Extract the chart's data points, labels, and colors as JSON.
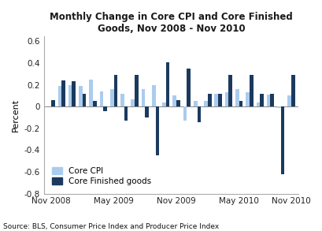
{
  "title": "Monthly Change in Core CPI and Core Finished\nGoods, Nov 2008 - Nov 2010",
  "ylabel": "Percent",
  "source": "Source: BLS, Consumer Price Index and Producer Price Index",
  "ylim": [
    -0.8,
    0.65
  ],
  "yticks": [
    -0.8,
    -0.6,
    -0.4,
    -0.2,
    0.0,
    0.2,
    0.4,
    0.6
  ],
  "xtick_labels": [
    "Nov 2008",
    "May 2009",
    "Nov 2009",
    "May 2010",
    "Nov 2010"
  ],
  "core_cpi": [
    0.0,
    0.19,
    0.2,
    0.19,
    0.25,
    0.14,
    0.16,
    0.12,
    0.07,
    0.16,
    0.2,
    0.04,
    0.1,
    -0.13,
    0.05,
    0.05,
    0.12,
    0.13,
    0.16,
    0.13,
    0.04,
    0.11,
    -0.01,
    0.1
  ],
  "core_finished": [
    0.06,
    0.24,
    0.23,
    0.12,
    0.05,
    -0.04,
    0.29,
    -0.13,
    0.29,
    -0.1,
    -0.45,
    0.41,
    0.06,
    0.35,
    -0.14,
    0.12,
    0.12,
    0.29,
    0.05,
    0.29,
    0.12,
    0.12,
    -0.62,
    0.29
  ],
  "color_cpi": "#aaccee",
  "color_finished": "#1b3a5e",
  "bar_width": 0.35
}
